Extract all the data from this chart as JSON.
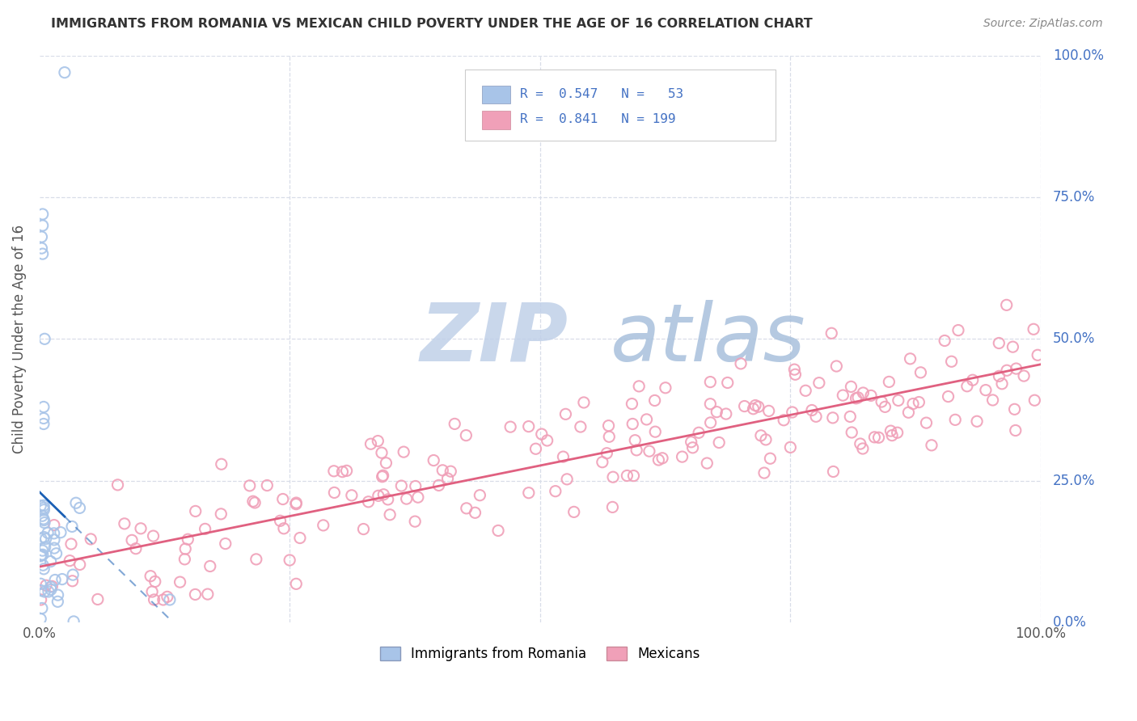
{
  "title": "IMMIGRANTS FROM ROMANIA VS MEXICAN CHILD POVERTY UNDER THE AGE OF 16 CORRELATION CHART",
  "source": "Source: ZipAtlas.com",
  "ylabel": "Child Poverty Under the Age of 16",
  "background_color": "#ffffff",
  "grid_color": "#d8dde8",
  "romania_color": "#a8c4e8",
  "mexican_color": "#f0a0b8",
  "romania_line_color": "#1a5fb4",
  "mexican_line_color": "#e06080",
  "watermark_zip_color": "#c8d8f0",
  "watermark_atlas_color": "#a0b8d8",
  "right_label_color": "#4472c4",
  "legend_text_color": "#4472c4",
  "title_color": "#333333",
  "source_color": "#888888",
  "tick_color": "#555555"
}
